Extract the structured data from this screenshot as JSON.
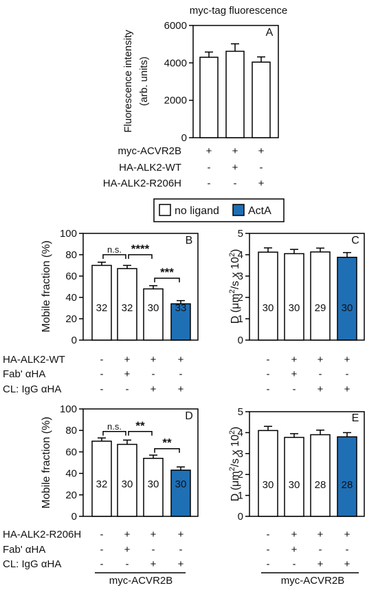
{
  "colors": {
    "ligand": "#1f6fb5",
    "no_ligand": "#ffffff",
    "axis": "#000000"
  },
  "legend": {
    "no_ligand": "no ligand",
    "ligand": "ActA"
  },
  "chart_data": [
    {
      "panel": "A",
      "type": "bar",
      "title": "myc-tag fluorescence",
      "ylabel_line1": "Fluorescence intensity",
      "ylabel_line2": "(arb. units)",
      "ylim": [
        0,
        6000
      ],
      "yticks": [
        "0",
        "2000",
        "4000",
        "6000"
      ],
      "values": [
        4300,
        4620,
        4040
      ],
      "errors": [
        280,
        400,
        280
      ],
      "filled": [
        false,
        false,
        false
      ],
      "counts": [
        "",
        "",
        ""
      ],
      "rows": [
        {
          "label": "myc-ACVR2B",
          "marks": [
            "+",
            "+",
            "+"
          ]
        },
        {
          "label": "HA-ALK2-WT",
          "marks": [
            "-",
            "+",
            "-"
          ]
        },
        {
          "label": "HA-ALK2-R206H",
          "marks": [
            "-",
            "-",
            "+"
          ]
        }
      ],
      "brackets": []
    },
    {
      "panel": "B",
      "type": "bar",
      "ylabel": "Mobile fraction (%)",
      "ylim": [
        0,
        100
      ],
      "yticks": [
        "0",
        "20",
        "40",
        "60",
        "80",
        "100"
      ],
      "values": [
        70,
        67,
        48,
        34
      ],
      "errors": [
        3,
        3,
        3,
        3
      ],
      "filled": [
        false,
        false,
        false,
        true
      ],
      "counts": [
        "32",
        "32",
        "30",
        "33"
      ],
      "rows": [
        {
          "label": "HA-ALK2-WT",
          "marks": [
            "-",
            "+",
            "+",
            "+"
          ]
        },
        {
          "label": "Fab' αHA",
          "marks": [
            "-",
            "+",
            "-",
            "-"
          ]
        },
        {
          "label": "CL: IgG αHA",
          "marks": [
            "-",
            "-",
            "+",
            "+"
          ]
        }
      ],
      "brackets": [
        {
          "from": 0,
          "to": 1,
          "y": 80,
          "label": "n.s."
        },
        {
          "from": 1,
          "to": 2,
          "y": 80,
          "label": "****"
        },
        {
          "from": 2,
          "to": 3,
          "y": 58,
          "label": "***"
        }
      ]
    },
    {
      "panel": "C",
      "type": "bar",
      "ylabel_prefix": "D (",
      "ylabel_mu": "μ",
      "ylabel_m": "m",
      "ylabel_sq": "2",
      "ylabel_mid": "/s x 10",
      "ylabel_exp": "2",
      "ylabel_suffix": ")",
      "ylim": [
        0,
        5
      ],
      "yticks": [
        "0",
        "1",
        "2",
        "3",
        "4",
        "5"
      ],
      "values": [
        4.12,
        4.05,
        4.13,
        3.88
      ],
      "errors": [
        0.2,
        0.2,
        0.18,
        0.22
      ],
      "filled": [
        false,
        false,
        false,
        true
      ],
      "counts": [
        "30",
        "30",
        "29",
        "30"
      ],
      "rows": [
        {
          "label": "",
          "marks": [
            "-",
            "+",
            "+",
            "+"
          ]
        },
        {
          "label": "",
          "marks": [
            "-",
            "+",
            "-",
            "-"
          ]
        },
        {
          "label": "",
          "marks": [
            "-",
            "-",
            "+",
            "+"
          ]
        }
      ],
      "brackets": []
    },
    {
      "panel": "D",
      "type": "bar",
      "ylabel": "Mobile fraction (%)",
      "ylim": [
        0,
        100
      ],
      "yticks": [
        "0",
        "20",
        "40",
        "60",
        "80",
        "100"
      ],
      "values": [
        70,
        67,
        54,
        43
      ],
      "errors": [
        3,
        4,
        3,
        3
      ],
      "filled": [
        false,
        false,
        false,
        true
      ],
      "counts": [
        "32",
        "30",
        "30",
        "30"
      ],
      "rows": [
        {
          "label": "HA-ALK2-R206H",
          "marks": [
            "-",
            "+",
            "+",
            "+"
          ]
        },
        {
          "label": "Fab' αHA",
          "marks": [
            "-",
            "+",
            "-",
            "-"
          ]
        },
        {
          "label": "CL: IgG αHA",
          "marks": [
            "-",
            "-",
            "+",
            "+"
          ]
        }
      ],
      "brackets": [
        {
          "from": 0,
          "to": 1,
          "y": 79,
          "label": "n.s."
        },
        {
          "from": 1,
          "to": 2,
          "y": 79,
          "label": "**"
        },
        {
          "from": 2,
          "to": 3,
          "y": 63,
          "label": "**"
        }
      ],
      "footer": "myc-ACVR2B"
    },
    {
      "panel": "E",
      "type": "bar",
      "ylabel_prefix": "D (",
      "ylabel_mu": "μ",
      "ylabel_m": "m",
      "ylabel_sq": "2",
      "ylabel_mid": "/s x 10",
      "ylabel_exp": "2",
      "ylabel_suffix": ")",
      "ylim": [
        0,
        5
      ],
      "yticks": [
        "0",
        "1",
        "2",
        "3",
        "4",
        "5"
      ],
      "values": [
        4.1,
        3.77,
        3.9,
        3.8
      ],
      "errors": [
        0.2,
        0.18,
        0.22,
        0.2
      ],
      "filled": [
        false,
        false,
        false,
        true
      ],
      "counts": [
        "30",
        "30",
        "28",
        "28"
      ],
      "rows": [
        {
          "label": "",
          "marks": [
            "-",
            "+",
            "+",
            "+"
          ]
        },
        {
          "label": "",
          "marks": [
            "-",
            "+",
            "-",
            "-"
          ]
        },
        {
          "label": "",
          "marks": [
            "-",
            "-",
            "+",
            "+"
          ]
        }
      ],
      "brackets": [],
      "footer": "myc-ACVR2B"
    }
  ]
}
